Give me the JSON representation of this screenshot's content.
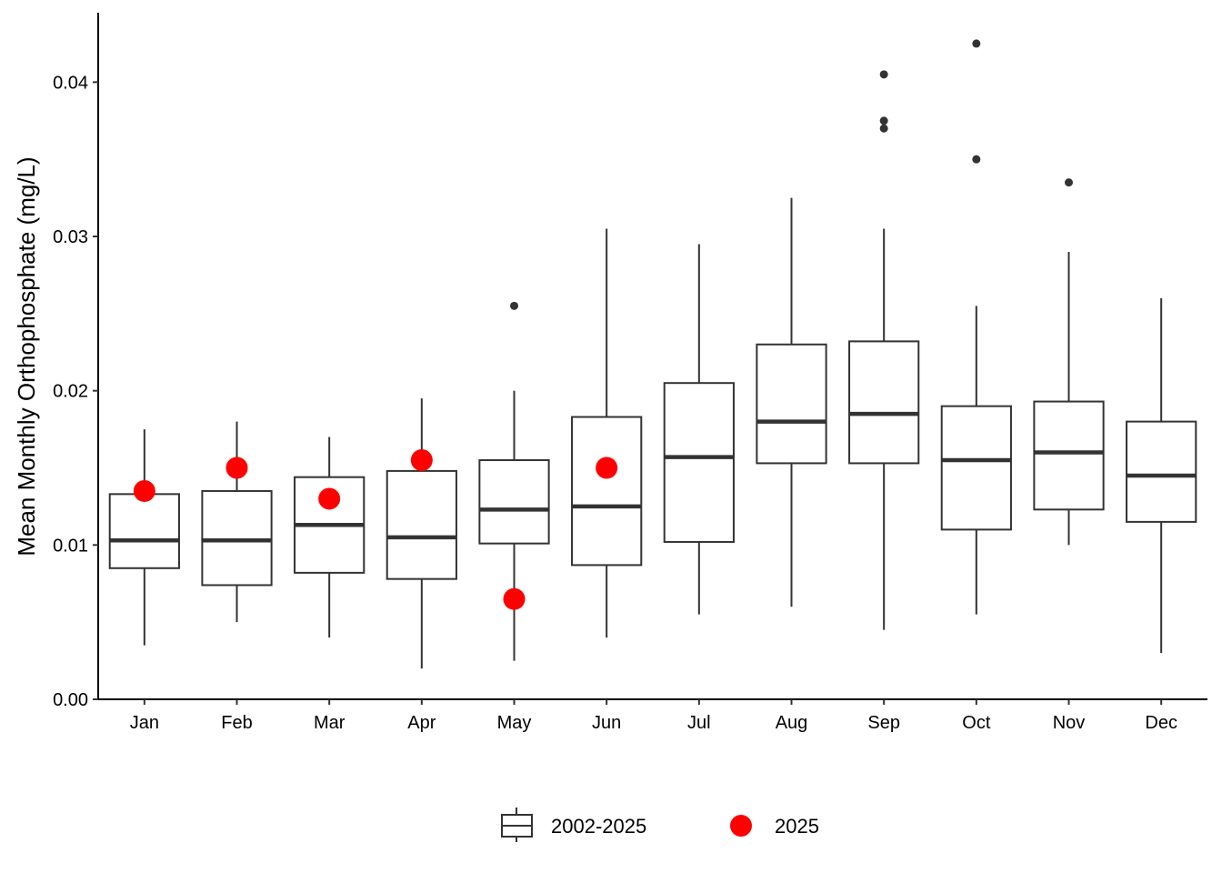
{
  "chart_data": {
    "type": "box",
    "title": "",
    "xlabel": "",
    "ylabel": "Mean Monthly Orthophosphate (mg/L)",
    "ylim": [
      0,
      0.0445
    ],
    "yticks": [
      0,
      0.01,
      0.02,
      0.03,
      0.04
    ],
    "ytick_labels": [
      "0.00",
      "0.01",
      "0.02",
      "0.03",
      "0.04"
    ],
    "grid": false,
    "legend_position": "bottom",
    "legend": [
      {
        "key": "box",
        "label": "2002-2025"
      },
      {
        "key": "point",
        "label": "2025"
      }
    ],
    "colors": {
      "box_stroke": "#333333",
      "point_2025": "#ff0000",
      "outlier": "#333333"
    },
    "categories": [
      "Jan",
      "Feb",
      "Mar",
      "Apr",
      "May",
      "Jun",
      "Jul",
      "Aug",
      "Sep",
      "Oct",
      "Nov",
      "Dec"
    ],
    "boxes": [
      {
        "month": "Jan",
        "whisker_low": 0.0035,
        "q1": 0.0085,
        "median": 0.0103,
        "q3": 0.0133,
        "whisker_high": 0.0175,
        "outliers": []
      },
      {
        "month": "Feb",
        "whisker_low": 0.005,
        "q1": 0.0074,
        "median": 0.0103,
        "q3": 0.0135,
        "whisker_high": 0.018,
        "outliers": []
      },
      {
        "month": "Mar",
        "whisker_low": 0.004,
        "q1": 0.0082,
        "median": 0.0113,
        "q3": 0.0144,
        "whisker_high": 0.017,
        "outliers": []
      },
      {
        "month": "Apr",
        "whisker_low": 0.002,
        "q1": 0.0078,
        "median": 0.0105,
        "q3": 0.0148,
        "whisker_high": 0.0195,
        "outliers": []
      },
      {
        "month": "May",
        "whisker_low": 0.0025,
        "q1": 0.0101,
        "median": 0.0123,
        "q3": 0.0155,
        "whisker_high": 0.02,
        "outliers": [
          0.0255
        ]
      },
      {
        "month": "Jun",
        "whisker_low": 0.004,
        "q1": 0.0087,
        "median": 0.0125,
        "q3": 0.0183,
        "whisker_high": 0.0305,
        "outliers": []
      },
      {
        "month": "Jul",
        "whisker_low": 0.0055,
        "q1": 0.0102,
        "median": 0.0157,
        "q3": 0.0205,
        "whisker_high": 0.0295,
        "outliers": []
      },
      {
        "month": "Aug",
        "whisker_low": 0.006,
        "q1": 0.0153,
        "median": 0.018,
        "q3": 0.023,
        "whisker_high": 0.0325,
        "outliers": []
      },
      {
        "month": "Sep",
        "whisker_low": 0.0045,
        "q1": 0.0153,
        "median": 0.0185,
        "q3": 0.0232,
        "whisker_high": 0.0305,
        "outliers": [
          0.037,
          0.0375,
          0.0405
        ]
      },
      {
        "month": "Oct",
        "whisker_low": 0.0055,
        "q1": 0.011,
        "median": 0.0155,
        "q3": 0.019,
        "whisker_high": 0.0255,
        "outliers": [
          0.035,
          0.0425
        ]
      },
      {
        "month": "Nov",
        "whisker_low": 0.01,
        "q1": 0.0123,
        "median": 0.016,
        "q3": 0.0193,
        "whisker_high": 0.029,
        "outliers": [
          0.0335
        ]
      },
      {
        "month": "Dec",
        "whisker_low": 0.003,
        "q1": 0.0115,
        "median": 0.0145,
        "q3": 0.018,
        "whisker_high": 0.026,
        "outliers": []
      }
    ],
    "points_2025": [
      {
        "month": "Jan",
        "value": 0.0135
      },
      {
        "month": "Feb",
        "value": 0.015
      },
      {
        "month": "Mar",
        "value": 0.013
      },
      {
        "month": "Apr",
        "value": 0.0155
      },
      {
        "month": "May",
        "value": 0.0065
      },
      {
        "month": "Jun",
        "value": 0.015
      }
    ]
  }
}
